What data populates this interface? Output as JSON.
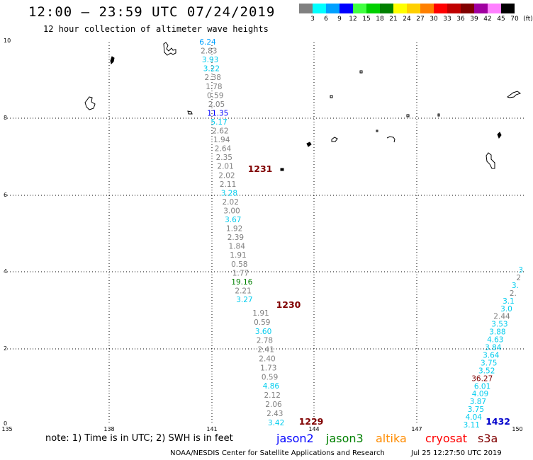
{
  "header": {
    "title": "12:00 – 23:59 UTC 07/24/2019",
    "subtitle": "12 hour collection of altimeter wave heights"
  },
  "colorbar": {
    "labels": [
      "3",
      "6",
      "9",
      "12",
      "15",
      "18",
      "21",
      "24",
      "27",
      "30",
      "33",
      "36",
      "39",
      "42",
      "45",
      "70",
      "(ft)"
    ],
    "colors": [
      "#808080",
      "#00ffff",
      "#00a0ff",
      "#0000ff",
      "#40ff40",
      "#00d000",
      "#008000",
      "#ffff00",
      "#ffd000",
      "#ff8000",
      "#ff0000",
      "#c00000",
      "#800000",
      "#a000a0",
      "#ff80ff",
      "#000000"
    ]
  },
  "axes": {
    "y_ticks": [
      "10",
      "8",
      "6",
      "4",
      "2",
      "0"
    ],
    "x_ticks": [
      "135",
      "138",
      "141",
      "144",
      "147",
      "150"
    ]
  },
  "tracks": [
    {
      "time": "1231",
      "time_color": "#800000",
      "readings": [
        {
          "v": "6.24",
          "c": "#00a0ff"
        },
        {
          "v": "2.83",
          "c": "#808080"
        },
        {
          "v": "3.93",
          "c": "#00ccee"
        },
        {
          "v": "3.22",
          "c": "#00ccee"
        },
        {
          "v": "2.38",
          "c": "#808080"
        },
        {
          "v": "1.78",
          "c": "#808080"
        },
        {
          "v": "0.59",
          "c": "#808080"
        },
        {
          "v": "2.05",
          "c": "#808080"
        },
        {
          "v": "11.35",
          "c": "#0000ff"
        },
        {
          "v": "5.17",
          "c": "#00ccee"
        },
        {
          "v": "2.62",
          "c": "#808080"
        },
        {
          "v": "1.94",
          "c": "#808080"
        },
        {
          "v": "2.64",
          "c": "#808080"
        },
        {
          "v": "2.35",
          "c": "#808080"
        },
        {
          "v": "2.01",
          "c": "#808080"
        },
        {
          "v": "2.02",
          "c": "#808080"
        },
        {
          "v": "2.11",
          "c": "#808080"
        },
        {
          "v": "3.28",
          "c": "#00ccee"
        },
        {
          "v": "2.02",
          "c": "#808080"
        },
        {
          "v": "3.00",
          "c": "#808080"
        },
        {
          "v": "3.67",
          "c": "#00ccee"
        },
        {
          "v": "1.92",
          "c": "#808080"
        },
        {
          "v": "2.39",
          "c": "#808080"
        },
        {
          "v": "1.84",
          "c": "#808080"
        },
        {
          "v": "1.91",
          "c": "#808080"
        },
        {
          "v": "0.58",
          "c": "#808080"
        },
        {
          "v": "1.77",
          "c": "#808080"
        },
        {
          "v": "19.16",
          "c": "#008000"
        },
        {
          "v": "2.21",
          "c": "#808080"
        },
        {
          "v": "3.27",
          "c": "#00ccee"
        }
      ]
    },
    {
      "time": "1230",
      "time_color": "#800000",
      "readings": [
        {
          "v": "1.91",
          "c": "#808080"
        },
        {
          "v": "0.59",
          "c": "#808080"
        },
        {
          "v": "3.60",
          "c": "#00ccee"
        },
        {
          "v": "2.78",
          "c": "#808080"
        },
        {
          "v": "2.41",
          "c": "#808080"
        },
        {
          "v": "2.40",
          "c": "#808080"
        },
        {
          "v": "1.73",
          "c": "#808080"
        },
        {
          "v": "0.59",
          "c": "#808080"
        },
        {
          "v": "4.86",
          "c": "#00ccee"
        },
        {
          "v": "2.12",
          "c": "#808080"
        },
        {
          "v": "2.06",
          "c": "#808080"
        },
        {
          "v": "2.43",
          "c": "#808080"
        },
        {
          "v": "3.42",
          "c": "#00ccee"
        }
      ]
    },
    {
      "time": "1229",
      "time_color": "#800000",
      "readings": []
    },
    {
      "time": "1432",
      "time_color": "#0000cc",
      "readings": [
        {
          "v": "3",
          "c": "#00ccee"
        },
        {
          "v": "2",
          "c": "#808080"
        },
        {
          "v": "3.",
          "c": "#00ccee"
        },
        {
          "v": "2.",
          "c": "#808080"
        },
        {
          "v": "3.1",
          "c": "#00ccee"
        },
        {
          "v": "3.0",
          "c": "#00ccee"
        },
        {
          "v": "2.44",
          "c": "#808080"
        },
        {
          "v": "3.53",
          "c": "#00ccee"
        },
        {
          "v": "3.88",
          "c": "#00ccee"
        },
        {
          "v": "4.63",
          "c": "#00ccee"
        },
        {
          "v": "3.84",
          "c": "#00ccee"
        },
        {
          "v": "3.64",
          "c": "#00ccee"
        },
        {
          "v": "3.75",
          "c": "#00ccee"
        },
        {
          "v": "3.52",
          "c": "#00ccee"
        },
        {
          "v": "36.27",
          "c": "#800000"
        },
        {
          "v": "6.01",
          "c": "#00ccee"
        },
        {
          "v": "4.09",
          "c": "#00ccee"
        },
        {
          "v": "3.87",
          "c": "#00ccee"
        },
        {
          "v": "3.75",
          "c": "#00ccee"
        },
        {
          "v": "4.04",
          "c": "#00ccee"
        },
        {
          "v": "3.11",
          "c": "#00ccee"
        }
      ]
    }
  ],
  "footer": {
    "note": "note:  1) Time is in UTC;  2) SWH is in feet",
    "legend": [
      {
        "label": "jason2",
        "color": "#0000ff"
      },
      {
        "label": "jason3",
        "color": "#008000"
      },
      {
        "label": "altika",
        "color": "#ff8c00"
      },
      {
        "label": "cryosat",
        "color": "#ff0000"
      },
      {
        "label": "s3a",
        "color": "#800000"
      }
    ],
    "credit": "NOAA/NESDIS Center for Satellite Applications and Research",
    "timestamp": "Jul 25 12:27:50 UTC 2019"
  }
}
